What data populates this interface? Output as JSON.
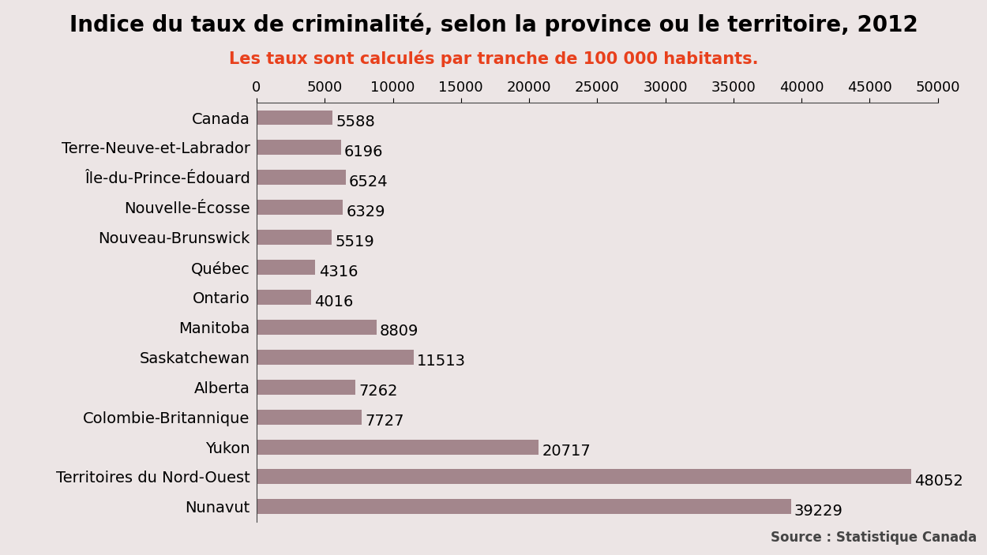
{
  "chart_data": {
    "type": "bar",
    "orientation": "horizontal",
    "title": "Indice du taux de criminalité, selon la province ou le territoire, 2012",
    "subtitle": "Les taux sont calculés par tranche de 100 000 habitants.",
    "source": "Source : Statistique Canada",
    "categories": [
      "Canada",
      "Terre-Neuve-et-Labrador",
      "Île-du-Prince-Édouard",
      "Nouvelle-Écosse",
      "Nouveau-Brunswick",
      "Québec",
      "Ontario",
      "Manitoba",
      "Saskatchewan",
      "Alberta",
      "Colombie-Britannique",
      "Yukon",
      "Territoires du Nord-Ouest",
      "Nunavut"
    ],
    "values": [
      5588,
      6196,
      6524,
      6329,
      5519,
      4316,
      4016,
      8809,
      11513,
      7262,
      7727,
      20717,
      48052,
      39229
    ],
    "color": "#a3868c",
    "xlim": [
      0,
      50000
    ],
    "xticks": [
      0,
      5000,
      10000,
      15000,
      20000,
      25000,
      30000,
      35000,
      40000,
      45000,
      50000
    ],
    "grid": false,
    "data_labels": true
  }
}
